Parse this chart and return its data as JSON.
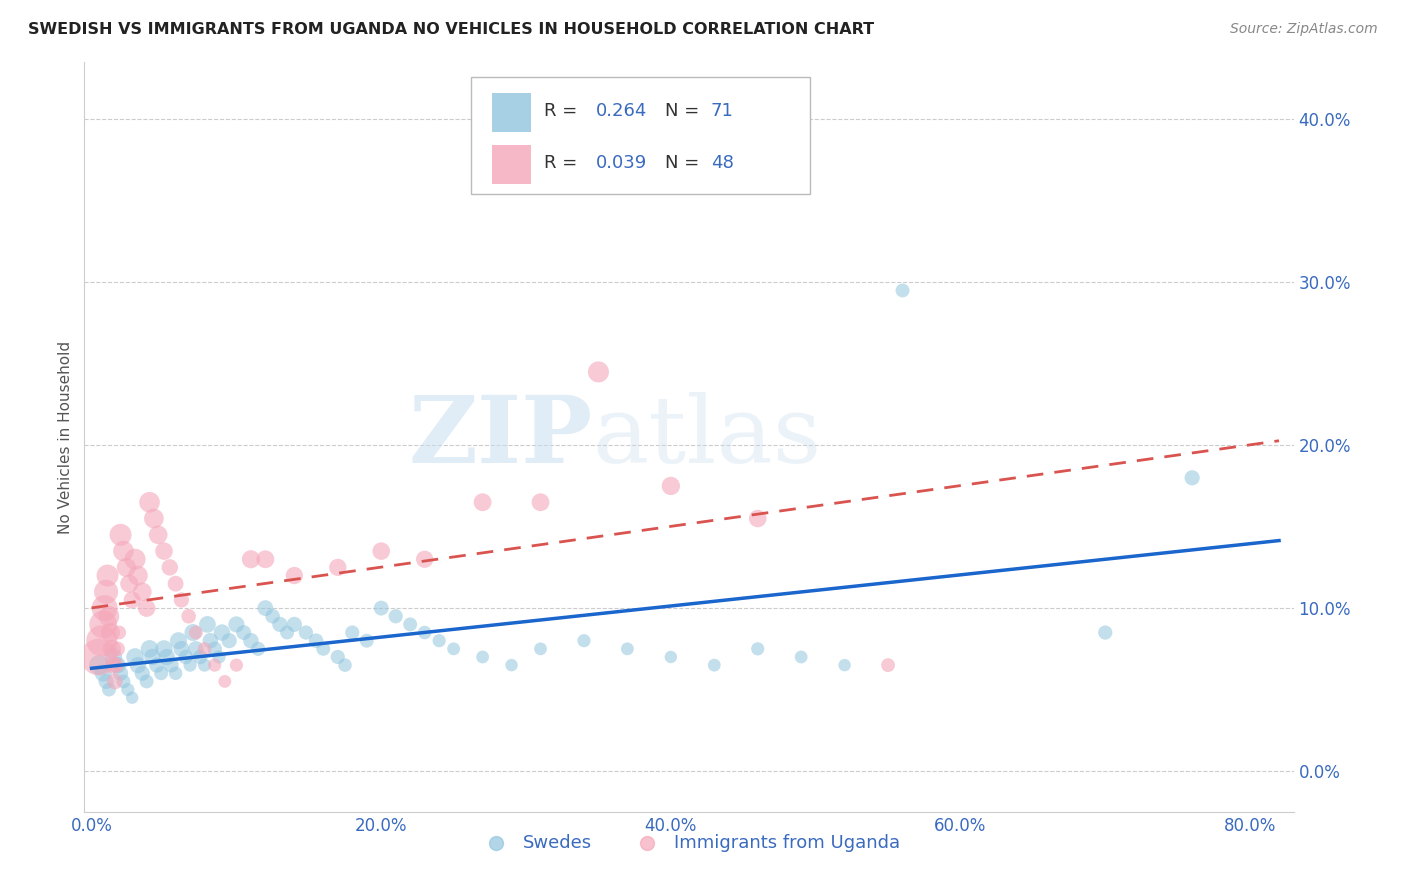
{
  "title": "SWEDISH VS IMMIGRANTS FROM UGANDA NO VEHICLES IN HOUSEHOLD CORRELATION CHART",
  "source": "Source: ZipAtlas.com",
  "ylabel": "No Vehicles in Household",
  "xlabel_ticks": [
    "0.0%",
    "20.0%",
    "40.0%",
    "60.0%",
    "80.0%"
  ],
  "xlabel_vals": [
    0.0,
    0.2,
    0.4,
    0.6,
    0.8
  ],
  "ylabel_ticks": [
    "0.0%",
    "10.0%",
    "20.0%",
    "30.0%",
    "40.0%"
  ],
  "ylabel_vals": [
    0.0,
    0.1,
    0.2,
    0.3,
    0.4
  ],
  "xlim": [
    -0.005,
    0.83
  ],
  "ylim": [
    -0.025,
    0.435
  ],
  "swedes_R": 0.264,
  "swedes_N": 71,
  "uganda_R": 0.039,
  "uganda_N": 48,
  "legend_label_swedes": "Swedes",
  "legend_label_uganda": "Immigrants from Uganda",
  "swedes_color": "#92c5de",
  "uganda_color": "#f4a7b9",
  "swedes_line_color": "#1a66cc",
  "uganda_line_color": "#d9534f",
  "grid_color": "#cccccc",
  "watermark_zip": "ZIP",
  "watermark_atlas": "atlas",
  "swedes_x": [
    0.005,
    0.008,
    0.01,
    0.012,
    0.015,
    0.018,
    0.02,
    0.022,
    0.025,
    0.028,
    0.03,
    0.032,
    0.035,
    0.038,
    0.04,
    0.042,
    0.045,
    0.048,
    0.05,
    0.052,
    0.055,
    0.058,
    0.06,
    0.062,
    0.065,
    0.068,
    0.07,
    0.072,
    0.075,
    0.078,
    0.08,
    0.082,
    0.085,
    0.088,
    0.09,
    0.095,
    0.1,
    0.105,
    0.11,
    0.115,
    0.12,
    0.125,
    0.13,
    0.135,
    0.14,
    0.148,
    0.155,
    0.16,
    0.17,
    0.175,
    0.18,
    0.19,
    0.2,
    0.21,
    0.22,
    0.23,
    0.24,
    0.25,
    0.27,
    0.29,
    0.31,
    0.34,
    0.37,
    0.4,
    0.43,
    0.46,
    0.49,
    0.52,
    0.56,
    0.7,
    0.76
  ],
  "swedes_y": [
    0.065,
    0.06,
    0.055,
    0.05,
    0.07,
    0.065,
    0.06,
    0.055,
    0.05,
    0.045,
    0.07,
    0.065,
    0.06,
    0.055,
    0.075,
    0.07,
    0.065,
    0.06,
    0.075,
    0.07,
    0.065,
    0.06,
    0.08,
    0.075,
    0.07,
    0.065,
    0.085,
    0.075,
    0.07,
    0.065,
    0.09,
    0.08,
    0.075,
    0.07,
    0.085,
    0.08,
    0.09,
    0.085,
    0.08,
    0.075,
    0.1,
    0.095,
    0.09,
    0.085,
    0.09,
    0.085,
    0.08,
    0.075,
    0.07,
    0.065,
    0.085,
    0.08,
    0.1,
    0.095,
    0.09,
    0.085,
    0.08,
    0.075,
    0.07,
    0.065,
    0.075,
    0.08,
    0.075,
    0.07,
    0.065,
    0.075,
    0.07,
    0.065,
    0.295,
    0.085,
    0.18
  ],
  "swedes_size": [
    200,
    150,
    120,
    100,
    160,
    140,
    120,
    100,
    90,
    80,
    160,
    140,
    120,
    100,
    160,
    140,
    120,
    100,
    155,
    135,
    115,
    95,
    150,
    130,
    110,
    90,
    150,
    125,
    110,
    90,
    145,
    125,
    110,
    90,
    140,
    120,
    135,
    115,
    125,
    105,
    130,
    110,
    120,
    100,
    120,
    105,
    110,
    100,
    105,
    95,
    105,
    100,
    115,
    105,
    100,
    95,
    90,
    85,
    85,
    80,
    85,
    90,
    85,
    80,
    85,
    90,
    85,
    80,
    100,
    105,
    120
  ],
  "uganda_x": [
    0.005,
    0.007,
    0.008,
    0.009,
    0.01,
    0.011,
    0.012,
    0.013,
    0.014,
    0.015,
    0.016,
    0.017,
    0.018,
    0.019,
    0.02,
    0.022,
    0.024,
    0.026,
    0.028,
    0.03,
    0.032,
    0.035,
    0.038,
    0.04,
    0.043,
    0.046,
    0.05,
    0.054,
    0.058,
    0.062,
    0.067,
    0.072,
    0.078,
    0.085,
    0.092,
    0.1,
    0.11,
    0.12,
    0.14,
    0.17,
    0.2,
    0.23,
    0.27,
    0.31,
    0.35,
    0.4,
    0.46,
    0.55
  ],
  "uganda_y": [
    0.07,
    0.08,
    0.09,
    0.1,
    0.11,
    0.12,
    0.095,
    0.085,
    0.075,
    0.065,
    0.055,
    0.065,
    0.075,
    0.085,
    0.145,
    0.135,
    0.125,
    0.115,
    0.105,
    0.13,
    0.12,
    0.11,
    0.1,
    0.165,
    0.155,
    0.145,
    0.135,
    0.125,
    0.115,
    0.105,
    0.095,
    0.085,
    0.075,
    0.065,
    0.055,
    0.065,
    0.13,
    0.13,
    0.12,
    0.125,
    0.135,
    0.13,
    0.165,
    0.165,
    0.245,
    0.175,
    0.155,
    0.065
  ],
  "uganda_size": [
    700,
    500,
    400,
    350,
    300,
    250,
    220,
    190,
    170,
    150,
    130,
    120,
    110,
    100,
    250,
    220,
    190,
    170,
    150,
    230,
    200,
    180,
    160,
    220,
    200,
    180,
    160,
    140,
    130,
    120,
    110,
    100,
    95,
    90,
    85,
    90,
    170,
    165,
    155,
    155,
    160,
    155,
    165,
    165,
    230,
    175,
    160,
    100
  ]
}
